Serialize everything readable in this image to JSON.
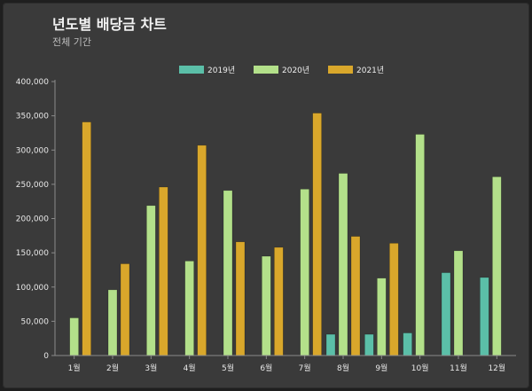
{
  "header": {
    "title": "년도별 배당금 차트",
    "subtitle": "전체 기간"
  },
  "colors": {
    "background": "#3a3a3a",
    "axis": "#8a8a8a",
    "text": "#e8e8e8"
  },
  "chart_data": {
    "type": "bar",
    "title": "년도별 배당금 차트",
    "subtitle": "전체 기간",
    "categories": [
      "1월",
      "2월",
      "3월",
      "4월",
      "5월",
      "6월",
      "7월",
      "8월",
      "9월",
      "10월",
      "11월",
      "12월"
    ],
    "series": [
      {
        "name": "2019년",
        "color": "#5bbfa8",
        "values": [
          0,
          0,
          0,
          0,
          0,
          0,
          0,
          31000,
          31000,
          33000,
          121000,
          114000
        ]
      },
      {
        "name": "2020년",
        "color": "#b3e08a",
        "values": [
          55000,
          96000,
          219000,
          138000,
          241000,
          145000,
          243000,
          266000,
          113000,
          323000,
          153000,
          261000
        ]
      },
      {
        "name": "2021년",
        "color": "#d9a72b",
        "values": [
          341000,
          134000,
          246000,
          307000,
          166000,
          158000,
          354000,
          174000,
          164000,
          0,
          0,
          0
        ]
      }
    ],
    "yticks": [
      0,
      50000,
      100000,
      150000,
      200000,
      250000,
      300000,
      350000,
      400000
    ],
    "ytick_labels": [
      "0",
      "50,000",
      "100,000",
      "150,000",
      "200,000",
      "250,000",
      "300,000",
      "350,000",
      "400,000"
    ],
    "ylim": [
      0,
      400000
    ],
    "legend_position": "top-center",
    "grid": false
  }
}
